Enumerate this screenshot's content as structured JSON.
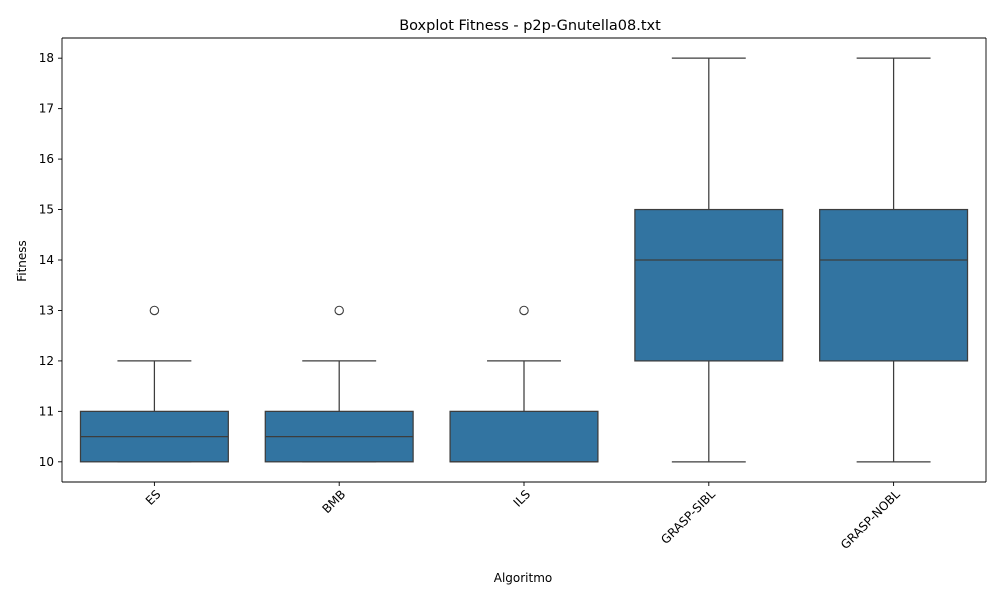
{
  "chart_data": {
    "type": "boxplot",
    "title": "Boxplot Fitness - p2p-Gnutella08.txt",
    "xlabel": "Algoritmo",
    "ylabel": "Fitness",
    "categories": [
      "ES",
      "BMB",
      "ILS",
      "GRASP-SIBL",
      "GRASP-NOBL"
    ],
    "yticks": [
      "10",
      "11",
      "12",
      "13",
      "14",
      "15",
      "16",
      "17",
      "18"
    ],
    "ylim": [
      9.6,
      18.4
    ],
    "box_color": "#3274a1",
    "line_color": "#3d3d3d",
    "grid": false,
    "boxes": [
      {
        "category": "ES",
        "whisker_low": 10,
        "q1": 10,
        "median": 10.5,
        "q3": 11,
        "whisker_high": 12,
        "outliers": [
          13
        ]
      },
      {
        "category": "BMB",
        "whisker_low": 10,
        "q1": 10,
        "median": 10.5,
        "q3": 11,
        "whisker_high": 12,
        "outliers": [
          13
        ]
      },
      {
        "category": "ILS",
        "whisker_low": 10,
        "q1": 10,
        "median": 10,
        "q3": 11,
        "whisker_high": 12,
        "outliers": [
          13
        ]
      },
      {
        "category": "GRASP-SIBL",
        "whisker_low": 10,
        "q1": 12,
        "median": 14,
        "q3": 15,
        "whisker_high": 18,
        "outliers": []
      },
      {
        "category": "GRASP-NOBL",
        "whisker_low": 10,
        "q1": 12,
        "median": 14,
        "q3": 15,
        "whisker_high": 18,
        "outliers": []
      }
    ]
  }
}
